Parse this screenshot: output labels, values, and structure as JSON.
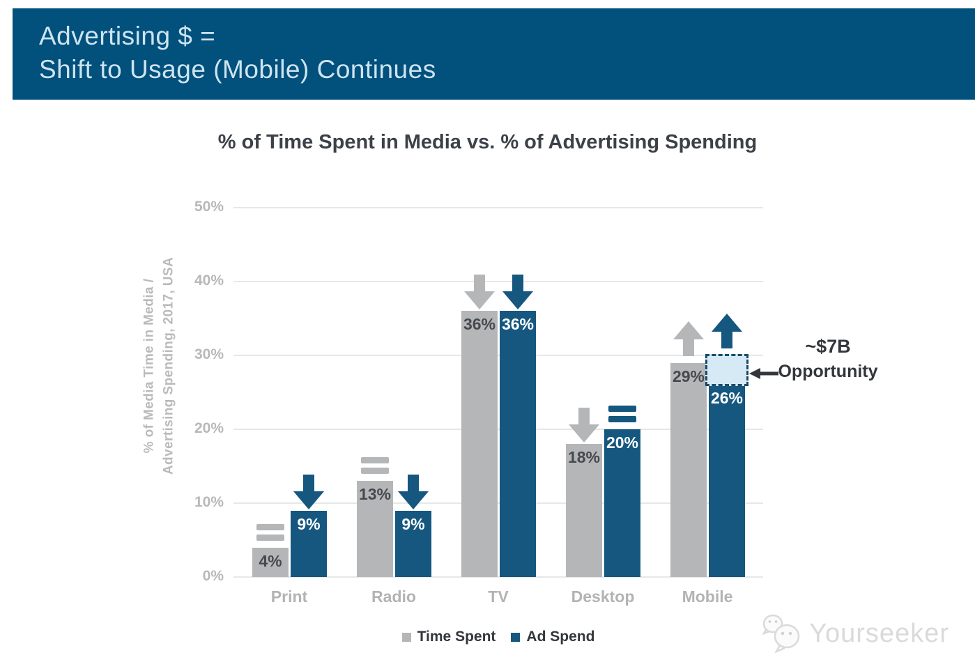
{
  "header": {
    "title_line1": "Advertising $ =",
    "title_line2": "Shift to Usage (Mobile) Continues"
  },
  "chart_data": {
    "type": "bar",
    "title": "% of Time Spent in Media vs. % of Advertising Spending",
    "ylabel_line1": "% of Media Time in Media /",
    "ylabel_line2": "Advertising Spending, 2017, USA",
    "categories": [
      "Print",
      "Radio",
      "TV",
      "Desktop",
      "Mobile"
    ],
    "series": [
      {
        "name": "Time Spent",
        "color": "#b5b6b8",
        "label_color": "#46494e",
        "values": [
          4,
          13,
          36,
          18,
          29
        ],
        "trends": [
          "flat",
          "flat",
          "down",
          "down",
          "up"
        ]
      },
      {
        "name": "Ad Spend",
        "color": "#15577f",
        "label_color": "#ffffff",
        "values": [
          9,
          9,
          36,
          20,
          26
        ],
        "trends": [
          "down",
          "down",
          "down",
          "flat",
          "up"
        ]
      }
    ],
    "yticks": [
      0,
      10,
      20,
      30,
      40,
      50
    ],
    "ylim": [
      0,
      50
    ],
    "grid": true,
    "legend_position": "bottom",
    "annotation": {
      "line1": "~$7B",
      "line2": "Opportunity",
      "target_category": "Mobile",
      "target_series": "Ad Spend",
      "box_from_pct": 26,
      "box_to_pct": 30,
      "box_fill": "#d6eaf6",
      "box_border": "#1c4a66"
    }
  },
  "watermark": {
    "label": "Yourseeker"
  },
  "colors": {
    "banner_bg": "#02507c",
    "banner_text": "#cde4f1",
    "title_text": "#3c4147",
    "axis_text": "#b7b8ba",
    "grid_line": "#e6e7e8",
    "legend_text": "#33363b",
    "annotation_text": "#33363b"
  }
}
